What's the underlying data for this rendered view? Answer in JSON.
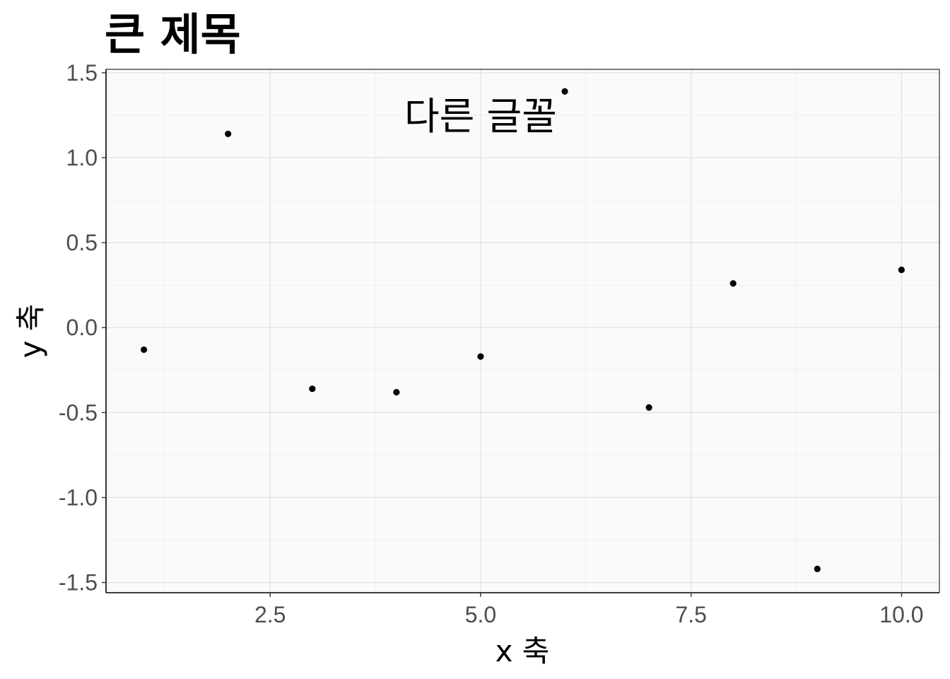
{
  "chart_data": {
    "type": "scatter",
    "title": "큰 제목",
    "xlabel": "x 축",
    "ylabel": "y 축",
    "xlim": [
      0.55,
      10.45
    ],
    "ylim": [
      -1.56,
      1.52
    ],
    "x_ticks": [
      2.5,
      5.0,
      7.5,
      10.0
    ],
    "x_tick_labels": [
      "2.5",
      "5.0",
      "7.5",
      "10.0"
    ],
    "y_ticks": [
      -1.5,
      -1.0,
      -0.5,
      0.0,
      0.5,
      1.0,
      1.5
    ],
    "y_tick_labels": [
      "-1.5",
      "-1.0",
      "-0.5",
      "0.0",
      "0.5",
      "1.0",
      "1.5"
    ],
    "grid": true,
    "annotation": {
      "text": "다른 글꼴",
      "x": 5.0,
      "y": 1.25
    },
    "x": [
      1,
      2,
      3,
      4,
      5,
      6,
      7,
      8,
      9,
      10
    ],
    "y": [
      -0.13,
      1.14,
      -0.36,
      -0.38,
      -0.17,
      1.39,
      -0.47,
      0.26,
      -1.42,
      0.34
    ],
    "point_color": "#000000",
    "panel_color": "#fafafa",
    "grid_color": "#e6e6e6"
  }
}
